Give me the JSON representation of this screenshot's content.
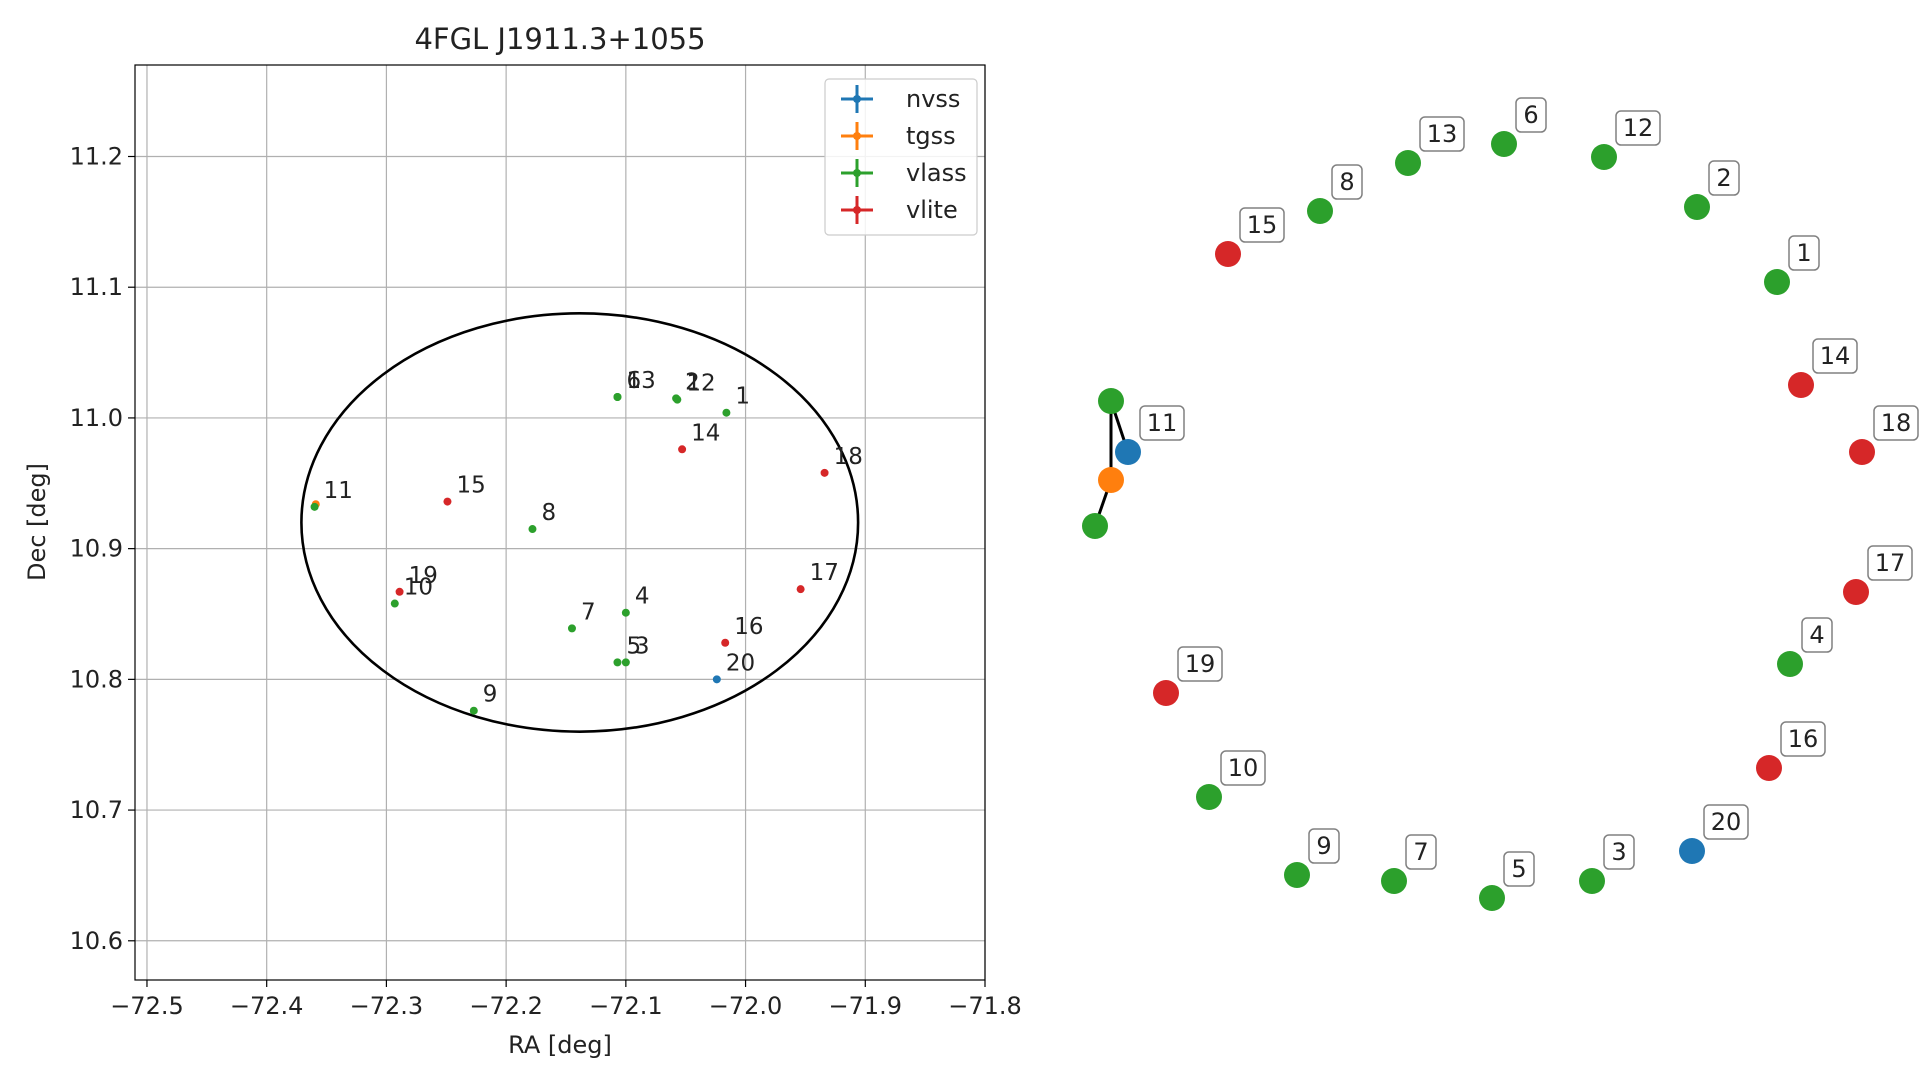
{
  "chart_data": [
    {
      "type": "scatter",
      "title": "4FGL J1911.3+1055",
      "xlabel": "RA [deg]",
      "ylabel": "Dec [deg]",
      "xlim": [
        -72.51,
        -71.8
      ],
      "ylim": [
        10.57,
        11.27
      ],
      "x_ticks": [
        -72.5,
        -72.4,
        -72.3,
        -72.2,
        -72.1,
        -72.0,
        -71.9,
        -71.8
      ],
      "x_tick_labels": [
        "−72.5",
        "−72.4",
        "−72.3",
        "−72.2",
        "−72.1",
        "−72.0",
        "−71.9",
        "−71.8"
      ],
      "y_ticks": [
        10.6,
        10.7,
        10.8,
        10.9,
        11.0,
        11.1,
        11.2
      ],
      "y_tick_labels": [
        "10.6",
        "10.7",
        "10.8",
        "10.9",
        "11.0",
        "11.1",
        "11.2"
      ],
      "grid": true,
      "legend_position": "top-right",
      "ellipse": {
        "center": [
          -72.1385,
          10.92
        ],
        "semi_axis_ra": 0.2325,
        "semi_axis_dec": 0.16,
        "color": "#000000"
      },
      "series": [
        {
          "name": "nvss",
          "color": "#1f77b4",
          "points": [
            {
              "id": "20",
              "x": -72.024,
              "y": 10.8
            }
          ]
        },
        {
          "name": "tgss",
          "color": "#ff7f0e",
          "points": [
            {
              "id": "",
              "x": -72.359,
              "y": 10.934
            }
          ]
        },
        {
          "name": "vlass",
          "color": "#2ca02c",
          "points": [
            {
              "id": "1",
              "x": -72.016,
              "y": 11.004
            },
            {
              "id": "2",
              "x": -72.058,
              "y": 11.015
            },
            {
              "id": "3",
              "x": -72.1,
              "y": 10.813
            },
            {
              "id": "4",
              "x": -72.1,
              "y": 10.851
            },
            {
              "id": "5",
              "x": -72.107,
              "y": 10.813
            },
            {
              "id": "6",
              "x": -72.107,
              "y": 11.016
            },
            {
              "id": "7",
              "x": -72.145,
              "y": 10.839
            },
            {
              "id": "8",
              "x": -72.178,
              "y": 10.915
            },
            {
              "id": "9",
              "x": -72.227,
              "y": 10.776
            },
            {
              "id": "10",
              "x": -72.293,
              "y": 10.858
            },
            {
              "id": "11",
              "x": -72.36,
              "y": 10.932
            },
            {
              "id": "12",
              "x": -72.057,
              "y": 11.014
            },
            {
              "id": "13",
              "x": -72.107,
              "y": 11.016
            }
          ]
        },
        {
          "name": "vlite",
          "color": "#d62728",
          "points": [
            {
              "id": "14",
              "x": -72.053,
              "y": 10.976
            },
            {
              "id": "15",
              "x": -72.249,
              "y": 10.936
            },
            {
              "id": "16",
              "x": -72.017,
              "y": 10.828
            },
            {
              "id": "17",
              "x": -71.954,
              "y": 10.869
            },
            {
              "id": "18",
              "x": -71.934,
              "y": 10.958
            },
            {
              "id": "19",
              "x": -72.289,
              "y": 10.867
            }
          ]
        }
      ]
    },
    {
      "type": "graph",
      "nodes": [
        {
          "label": "1",
          "color": "#2ca02c"
        },
        {
          "label": "2",
          "color": "#2ca02c"
        },
        {
          "label": "12",
          "color": "#2ca02c"
        },
        {
          "label": "6",
          "color": "#2ca02c"
        },
        {
          "label": "13",
          "color": "#2ca02c"
        },
        {
          "label": "8",
          "color": "#2ca02c"
        },
        {
          "label": "15",
          "color": "#d62728"
        },
        {
          "label": "",
          "color": "#2ca02c"
        },
        {
          "label": "11",
          "color": "#1f77b4"
        },
        {
          "label": "",
          "color": "#ff7f0e"
        },
        {
          "label": "",
          "color": "#2ca02c"
        },
        {
          "label": "19",
          "color": "#d62728"
        },
        {
          "label": "10",
          "color": "#2ca02c"
        },
        {
          "label": "9",
          "color": "#2ca02c"
        },
        {
          "label": "7",
          "color": "#2ca02c"
        },
        {
          "label": "5",
          "color": "#2ca02c"
        },
        {
          "label": "3",
          "color": "#2ca02c"
        },
        {
          "label": "20",
          "color": "#1f77b4"
        },
        {
          "label": "16",
          "color": "#d62728"
        },
        {
          "label": "4",
          "color": "#2ca02c"
        },
        {
          "label": "17",
          "color": "#d62728"
        },
        {
          "label": "18",
          "color": "#d62728"
        },
        {
          "label": "14",
          "color": "#d62728"
        }
      ],
      "edges": [
        [
          7,
          8
        ],
        [
          7,
          9
        ],
        [
          9,
          10
        ]
      ]
    }
  ]
}
